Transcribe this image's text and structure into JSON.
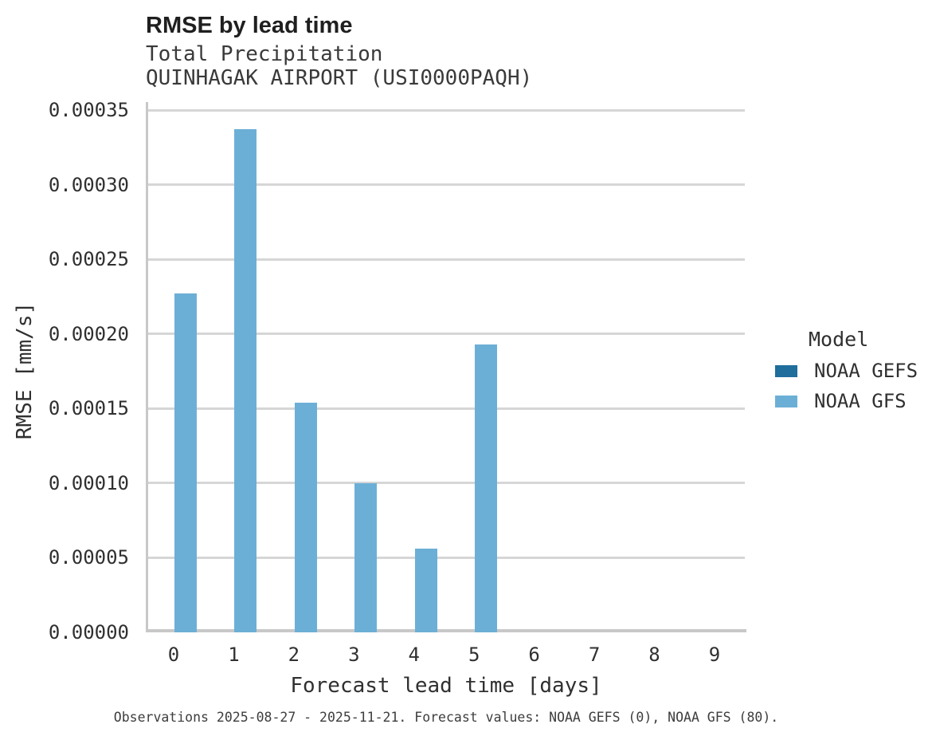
{
  "title": "RMSE by lead time",
  "subtitle_line1": "Total Precipitation",
  "subtitle_line2": "QUINHAGAK AIRPORT (USI0000PAQH)",
  "caption": "Observations 2025-08-27 - 2025-11-21. Forecast values: NOAA GEFS (0), NOAA GFS (80).",
  "legend": {
    "title": "Model",
    "items": [
      {
        "label": "NOAA GEFS",
        "color": "#1f6e9c"
      },
      {
        "label": "NOAA GFS",
        "color": "#6cafd6"
      }
    ]
  },
  "chart_data": {
    "type": "bar",
    "title": "RMSE by lead time",
    "subtitle": [
      "Total Precipitation",
      "QUINHAGAK AIRPORT (USI0000PAQH)"
    ],
    "xlabel": "Forecast lead time [days]",
    "ylabel": "RMSE [mm/s]",
    "categories": [
      "0",
      "1",
      "2",
      "3",
      "4",
      "5",
      "6",
      "7",
      "8",
      "9"
    ],
    "series": [
      {
        "name": "NOAA GEFS",
        "color": "#1f6e9c",
        "values": [
          0,
          0,
          0,
          0,
          0,
          0,
          0,
          0,
          0,
          0
        ]
      },
      {
        "name": "NOAA GFS",
        "color": "#6cafd6",
        "values": [
          0.000227,
          0.000337,
          0.000154,
          0.0001,
          5.6e-05,
          0.000193,
          0,
          0,
          0,
          0
        ]
      }
    ],
    "ylim": [
      0,
      0.00035
    ],
    "ytick_step": 5e-05,
    "ytick_labels": [
      "0.00000",
      "0.00005",
      "0.00010",
      "0.00015",
      "0.00020",
      "0.00025",
      "0.00030",
      "0.00035"
    ],
    "grid": true,
    "legend_position": "right",
    "legend_title": "Model"
  }
}
